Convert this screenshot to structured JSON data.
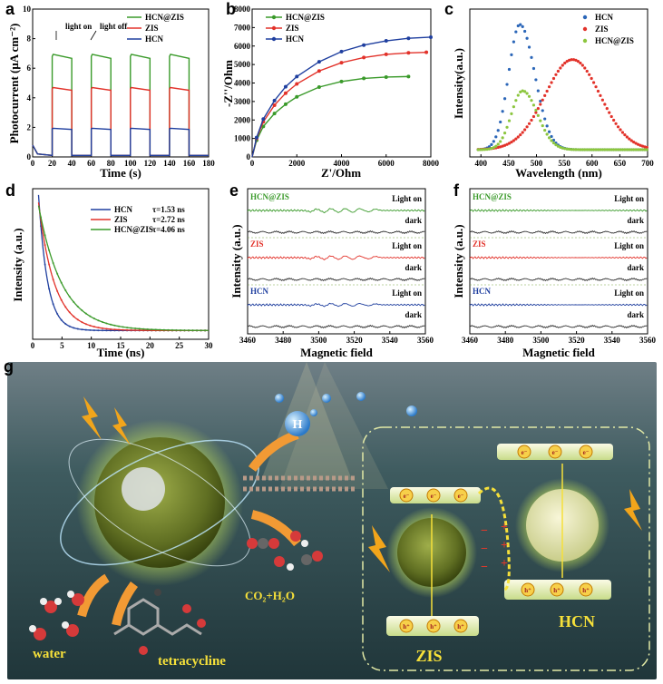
{
  "panels": {
    "a": {
      "label": "a",
      "ylabel": "Photocurrent (μA cm⁻²)",
      "xlabel": "Time (s)",
      "light_on": "light on",
      "light_off": "light off",
      "legend": [
        "HCN@ZIS",
        "ZIS",
        "HCN"
      ]
    },
    "b": {
      "label": "b",
      "ylabel": "-Z''/Ohm",
      "xlabel": "Z'/Ohm",
      "legend": [
        "HCN@ZIS",
        "ZIS",
        "HCN"
      ]
    },
    "c": {
      "label": "c",
      "ylabel": "Intensity(a.u.)",
      "xlabel": "Wavelength (nm)",
      "legend": [
        "HCN",
        "ZIS",
        "HCN@ZIS"
      ]
    },
    "d": {
      "label": "d",
      "ylabel": "Intensity (a.u.)",
      "xlabel": "Time (ns)",
      "legend": [
        "HCN",
        "ZIS",
        "HCN@ZIS"
      ],
      "tau": [
        "τ=1.53 ns",
        "τ=2.72 ns",
        "τ=4.06 ns"
      ]
    },
    "e": {
      "label": "e",
      "ylabel": "Intensity (a.u.)",
      "xlabel": "Magnetic field",
      "samples": [
        "HCN@ZIS",
        "ZIS",
        "HCN"
      ],
      "light_on": "Light on",
      "dark": "dark"
    },
    "f": {
      "label": "f",
      "ylabel": "Intensity (a.u.)",
      "xlabel": "Magnetic field",
      "samples": [
        "HCN@ZIS",
        "ZIS",
        "HCN"
      ],
      "light_on": "Light on",
      "dark": "dark"
    },
    "g": {
      "label": "g",
      "water": "water",
      "tetracycline": "tetracycline",
      "products": "CO₂+H₂O",
      "zis": "ZIS",
      "hcn": "HCN",
      "h2": "H",
      "electron": "e⁻",
      "hole": "h⁺",
      "minus": "−",
      "plus": "+"
    }
  },
  "colors": {
    "green": "#3a9a2a",
    "red": "#e2322a",
    "blue": "#1f3f9f",
    "lightgreen": "#8cc63f",
    "steel": "#2b66b8"
  },
  "chart_data": [
    {
      "panel": "a",
      "type": "line",
      "title": "",
      "xlabel": "Time (s)",
      "ylabel": "Photocurrent (μA cm⁻²)",
      "xlim": [
        0,
        180
      ],
      "ylim": [
        0,
        10
      ],
      "xticks": [
        0,
        20,
        40,
        60,
        80,
        100,
        120,
        140,
        160,
        180
      ],
      "yticks": [
        0,
        2,
        4,
        6,
        8,
        10
      ],
      "on_intervals": [
        [
          20,
          40
        ],
        [
          60,
          80
        ],
        [
          100,
          120
        ],
        [
          140,
          160
        ]
      ],
      "series": [
        {
          "name": "HCN@ZIS",
          "on_value": 6.8,
          "off_value": 0.1
        },
        {
          "name": "ZIS",
          "on_value": 4.6,
          "off_value": 0.1
        },
        {
          "name": "HCN",
          "on_value": 1.9,
          "off_value": 0.1
        }
      ]
    },
    {
      "panel": "b",
      "type": "line",
      "xlabel": "Z'/Ohm",
      "ylabel": "-Z''/Ohm",
      "xlim": [
        0,
        8000
      ],
      "ylim": [
        0,
        8000
      ],
      "xticks": [
        0,
        2000,
        4000,
        6000,
        8000
      ],
      "yticks": [
        0,
        1000,
        2000,
        3000,
        4000,
        5000,
        6000,
        7000,
        8000
      ],
      "series": [
        {
          "name": "HCN@ZIS",
          "x": [
            0,
            200,
            500,
            1000,
            1500,
            2000,
            3000,
            4000,
            5000,
            6000,
            7000
          ],
          "y": [
            0,
            900,
            1650,
            2350,
            2850,
            3250,
            3780,
            4080,
            4250,
            4320,
            4350
          ]
        },
        {
          "name": "ZIS",
          "x": [
            0,
            200,
            500,
            1000,
            1500,
            2000,
            3000,
            4000,
            5000,
            6000,
            7000,
            7800
          ],
          "y": [
            0,
            1000,
            1900,
            2800,
            3450,
            3950,
            4650,
            5100,
            5380,
            5550,
            5630,
            5660
          ]
        },
        {
          "name": "HCN",
          "x": [
            0,
            200,
            500,
            1000,
            1500,
            2000,
            3000,
            4000,
            5000,
            6000,
            7000,
            8000
          ],
          "y": [
            0,
            1050,
            2050,
            3050,
            3800,
            4350,
            5150,
            5700,
            6050,
            6280,
            6420,
            6480
          ]
        }
      ]
    },
    {
      "panel": "c",
      "type": "scatter",
      "xlabel": "Wavelength (nm)",
      "ylabel": "Intensity(a.u.)",
      "xlim": [
        380,
        700
      ],
      "xticks": [
        400,
        450,
        500,
        550,
        600,
        650,
        700
      ],
      "series": [
        {
          "name": "HCN",
          "peak_nm": 470,
          "peak_rel": 1.0
        },
        {
          "name": "ZIS",
          "peak_nm": 565,
          "peak_rel": 0.72
        },
        {
          "name": "HCN@ZIS",
          "peak_nm": 475,
          "peak_rel": 0.47
        }
      ]
    },
    {
      "panel": "d",
      "type": "line",
      "xlabel": "Time (ns)",
      "ylabel": "Intensity (a.u.)",
      "xlim": [
        0,
        30
      ],
      "xticks": [
        0,
        5,
        10,
        15,
        20,
        25,
        30
      ],
      "series": [
        {
          "name": "HCN",
          "tau_ns": 1.53
        },
        {
          "name": "ZIS",
          "tau_ns": 2.72
        },
        {
          "name": "HCN@ZIS",
          "tau_ns": 4.06
        }
      ]
    },
    {
      "panel": "e",
      "type": "line",
      "xlabel": "Magnetic field",
      "ylabel": "Intensity (a.u.)",
      "xlim": [
        3460,
        3560
      ],
      "xticks": [
        3460,
        3480,
        3500,
        3520,
        3540,
        3560
      ],
      "series": [
        {
          "name": "HCN@ZIS"
        },
        {
          "name": "ZIS"
        },
        {
          "name": "HCN"
        }
      ]
    },
    {
      "panel": "f",
      "type": "line",
      "xlabel": "Magnetic field",
      "ylabel": "Intensity (a.u.)",
      "xlim": [
        3460,
        3560
      ],
      "xticks": [
        3460,
        3480,
        3500,
        3520,
        3540,
        3560
      ],
      "series": [
        {
          "name": "HCN@ZIS"
        },
        {
          "name": "ZIS"
        },
        {
          "name": "HCN"
        }
      ]
    }
  ]
}
